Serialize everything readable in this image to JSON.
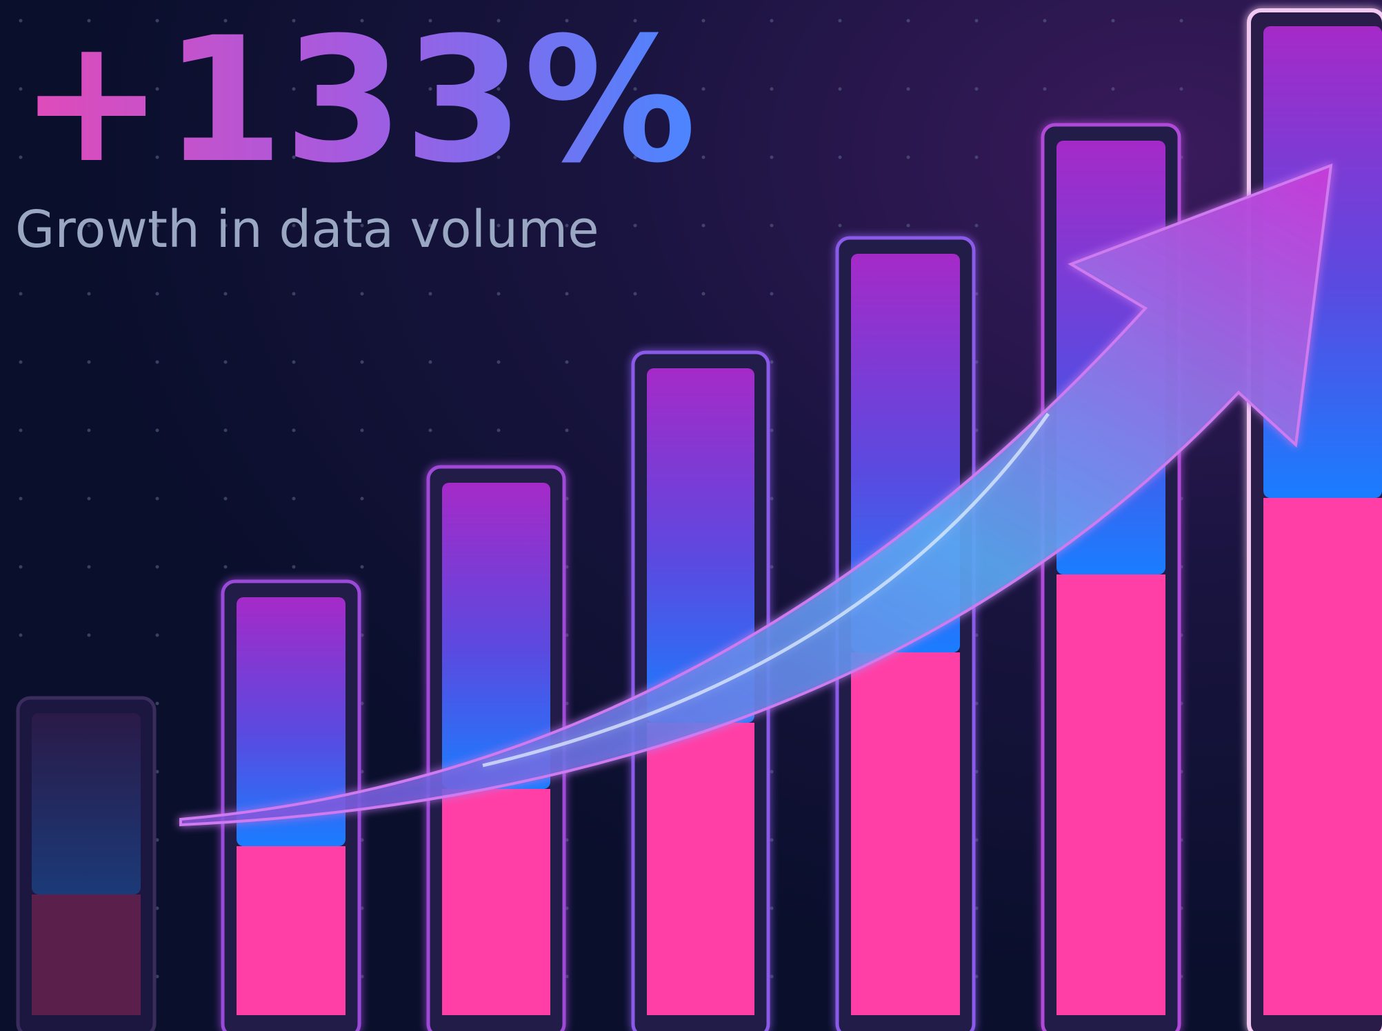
{
  "headline": "+133%",
  "subtitle": "Growth in data volume"
}
